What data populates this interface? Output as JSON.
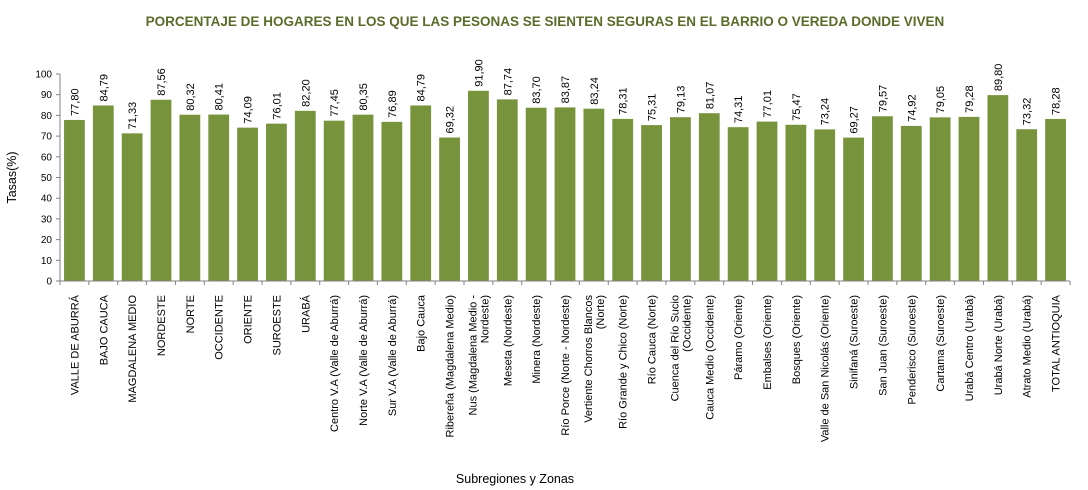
{
  "chart_data": {
    "type": "bar",
    "title": "PORCENTAJE DE HOGARES EN LOS QUE LAS PESONAS SE SIENTEN SEGURAS EN EL BARRIO O VEREDA DONDE VIVEN",
    "xlabel": "Subregiones y Zonas",
    "ylabel": "Tasas(%)",
    "ylim": [
      0,
      100
    ],
    "yticks": [
      "0",
      "10",
      "20",
      "30",
      "40",
      "50",
      "60",
      "70",
      "80",
      "90",
      "100"
    ],
    "grid": false,
    "bar_color": "#77933c",
    "categories": [
      [
        "VALLE DE ABURRÁ"
      ],
      [
        "BAJO CAUCA"
      ],
      [
        "MAGDALENA MEDIO"
      ],
      [
        "NORDESTE"
      ],
      [
        "NORTE"
      ],
      [
        "OCCIDENTE"
      ],
      [
        "ORIENTE"
      ],
      [
        "SUROESTE"
      ],
      [
        "URABÁ"
      ],
      [
        "Centro V.A (Valle de Aburrá)"
      ],
      [
        "Norte V.A (Valle de Aburrá)"
      ],
      [
        "Sur  V.A (Valle de Aburrá)"
      ],
      [
        "Bajo Cauca"
      ],
      [
        "Ribereña  (Magdalena Medio)"
      ],
      [
        "Nus  (Magdalena Medio -",
        "Nordeste)"
      ],
      [
        "Meseta  (Nordeste)"
      ],
      [
        "Minera  (Nordeste)"
      ],
      [
        "Río Porce  (Norte - Nordeste)"
      ],
      [
        "Vertiente Chorros Blancos",
        "(Norte)"
      ],
      [
        "Río Grande y Chico  (Norte)"
      ],
      [
        "Río Cauca  (Norte)"
      ],
      [
        "Cuenca del Río Sucio",
        "(Occidente)"
      ],
      [
        "Cauca Medio  (Occidente)"
      ],
      [
        "Páramo  (Oriente)"
      ],
      [
        "Embalses  (Oriente)"
      ],
      [
        "Bosques  (Oriente)"
      ],
      [
        "Valle de San Nicolás  (Oriente)"
      ],
      [
        "Sinifaná  (Suroeste)"
      ],
      [
        "San Juan  (Suroeste)"
      ],
      [
        "Penderisco  (Suroeste)"
      ],
      [
        "Cartama  (Suroeste)"
      ],
      [
        "Urabá Centro  (Urabá)"
      ],
      [
        "Urabá Norte  (Urabá)"
      ],
      [
        "Atrato Medio  (Urabá)"
      ],
      [
        "TOTAL ANTIOQUIA"
      ]
    ],
    "values": [
      77.8,
      84.79,
      71.33,
      87.56,
      80.32,
      80.41,
      74.09,
      76.01,
      82.2,
      77.45,
      80.35,
      76.89,
      84.79,
      69.32,
      91.9,
      87.74,
      83.7,
      83.87,
      83.24,
      78.31,
      75.31,
      79.13,
      81.07,
      74.31,
      77.01,
      75.47,
      73.24,
      69.27,
      79.57,
      74.92,
      79.05,
      79.28,
      89.8,
      73.32,
      78.28
    ],
    "value_labels": [
      "77,80",
      "84,79",
      "71,33",
      "87,56",
      "80,32",
      "80,41",
      "74,09",
      "76,01",
      "82,20",
      "77,45",
      "80,35",
      "76,89",
      "84,79",
      "69,32",
      "91,90",
      "87,74",
      "83,70",
      "83,87",
      "83,24",
      "78,31",
      "75,31",
      "79,13",
      "81,07",
      "74,31",
      "77,01",
      "75,47",
      "73,24",
      "69,27",
      "79,57",
      "74,92",
      "79,05",
      "79,28",
      "89,80",
      "73,32",
      "78,28"
    ]
  }
}
